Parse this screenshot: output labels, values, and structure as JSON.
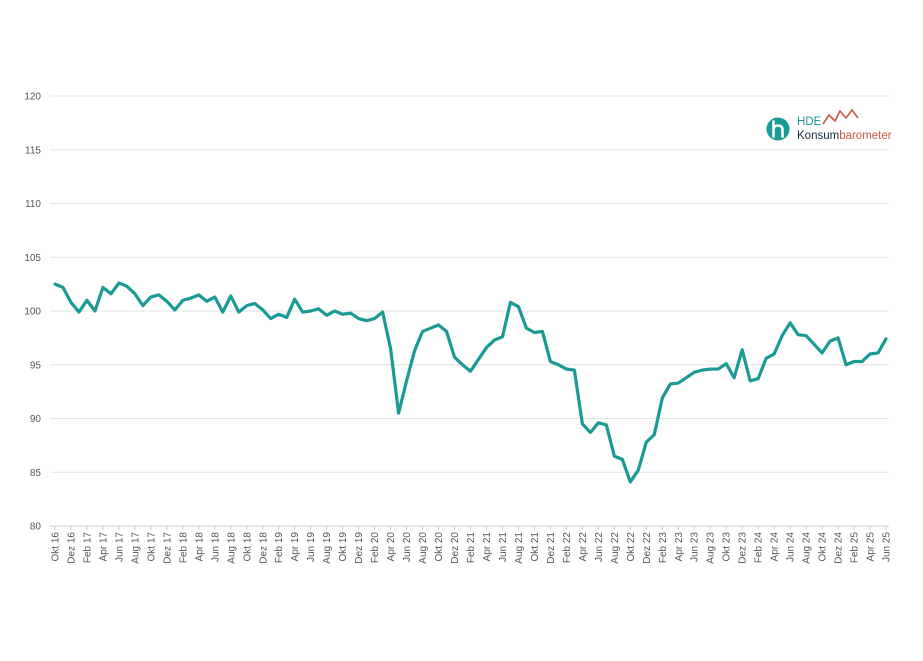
{
  "logo": {
    "line1": "HDE",
    "word_a": "Konsum",
    "word_b": "barometer",
    "colors": {
      "teal": "#1a9a95",
      "red": "#c25a3f",
      "dark": "#1b2b3a"
    }
  },
  "chart_data": {
    "type": "line",
    "title": "",
    "xlabel": "",
    "ylabel": "",
    "ylim": [
      80,
      120
    ],
    "yticks": [
      80,
      85,
      90,
      95,
      100,
      105,
      110,
      115,
      120
    ],
    "grid": true,
    "line_color": "#1a9a95",
    "x_labels": [
      "Okt 16",
      "Dez 16",
      "Feb 17",
      "Apr 17",
      "Jun 17",
      "Aug 17",
      "Okt 17",
      "Dez 17",
      "Feb 18",
      "Apr 18",
      "Jun 18",
      "Aug 18",
      "Okt 18",
      "Dez 18",
      "Feb 19",
      "Apr 19",
      "Jun 19",
      "Aug 19",
      "Okt 19",
      "Dez 19",
      "Feb 20",
      "Apr 20",
      "Jun 20",
      "Aug 20",
      "Okt 20",
      "Dez 20",
      "Feb 21",
      "Apr 21",
      "Jun 21",
      "Aug 21",
      "Okt 21",
      "Dez 21",
      "Feb 22",
      "Apr 22",
      "Jun 22",
      "Aug 22",
      "Okt 22",
      "Dez 22",
      "Feb 23",
      "Apr 23",
      "Jun 23",
      "Aug 23",
      "Okt 23",
      "Dez 23",
      "Feb 24",
      "Apr 24",
      "Jun 24",
      "Aug 24",
      "Okt 24",
      "Dez 24",
      "Feb 25",
      "Apr 25",
      "Jun 25"
    ],
    "series": [
      {
        "values": [
          102.5,
          102.2,
          100.8,
          99.9,
          101.0,
          100.0,
          102.2,
          101.6,
          102.6,
          102.3,
          101.6,
          100.5,
          101.3,
          101.5,
          100.9,
          100.1,
          101.0,
          101.2,
          101.5,
          100.9,
          101.3,
          99.9,
          101.4,
          99.9,
          100.5,
          100.7,
          100.1,
          99.3,
          99.7,
          99.4,
          101.1,
          99.9,
          100.0,
          100.2,
          99.6,
          100.0,
          99.7,
          99.8,
          99.3,
          99.1,
          99.3,
          99.9,
          96.5,
          90.5,
          93.5,
          96.3,
          98.1,
          98.4,
          98.7,
          98.1,
          95.7,
          95.0,
          94.4,
          95.5,
          96.6,
          97.3,
          97.6,
          100.8,
          100.4,
          98.4,
          98.0,
          98.1,
          95.3,
          95.0,
          94.6,
          94.5,
          89.5,
          88.7,
          89.6,
          89.4,
          86.5,
          86.2,
          84.1,
          85.2,
          87.8,
          88.5,
          91.9,
          93.2,
          93.3,
          93.8,
          94.3,
          94.5,
          94.6,
          94.6,
          95.1,
          93.8,
          96.4,
          93.5,
          93.7,
          95.6,
          96.0,
          97.7,
          98.9,
          97.8,
          97.7,
          96.9,
          96.1,
          97.2,
          97.5,
          95.0,
          95.3,
          95.3,
          96.0,
          96.1,
          97.4
        ]
      }
    ]
  }
}
